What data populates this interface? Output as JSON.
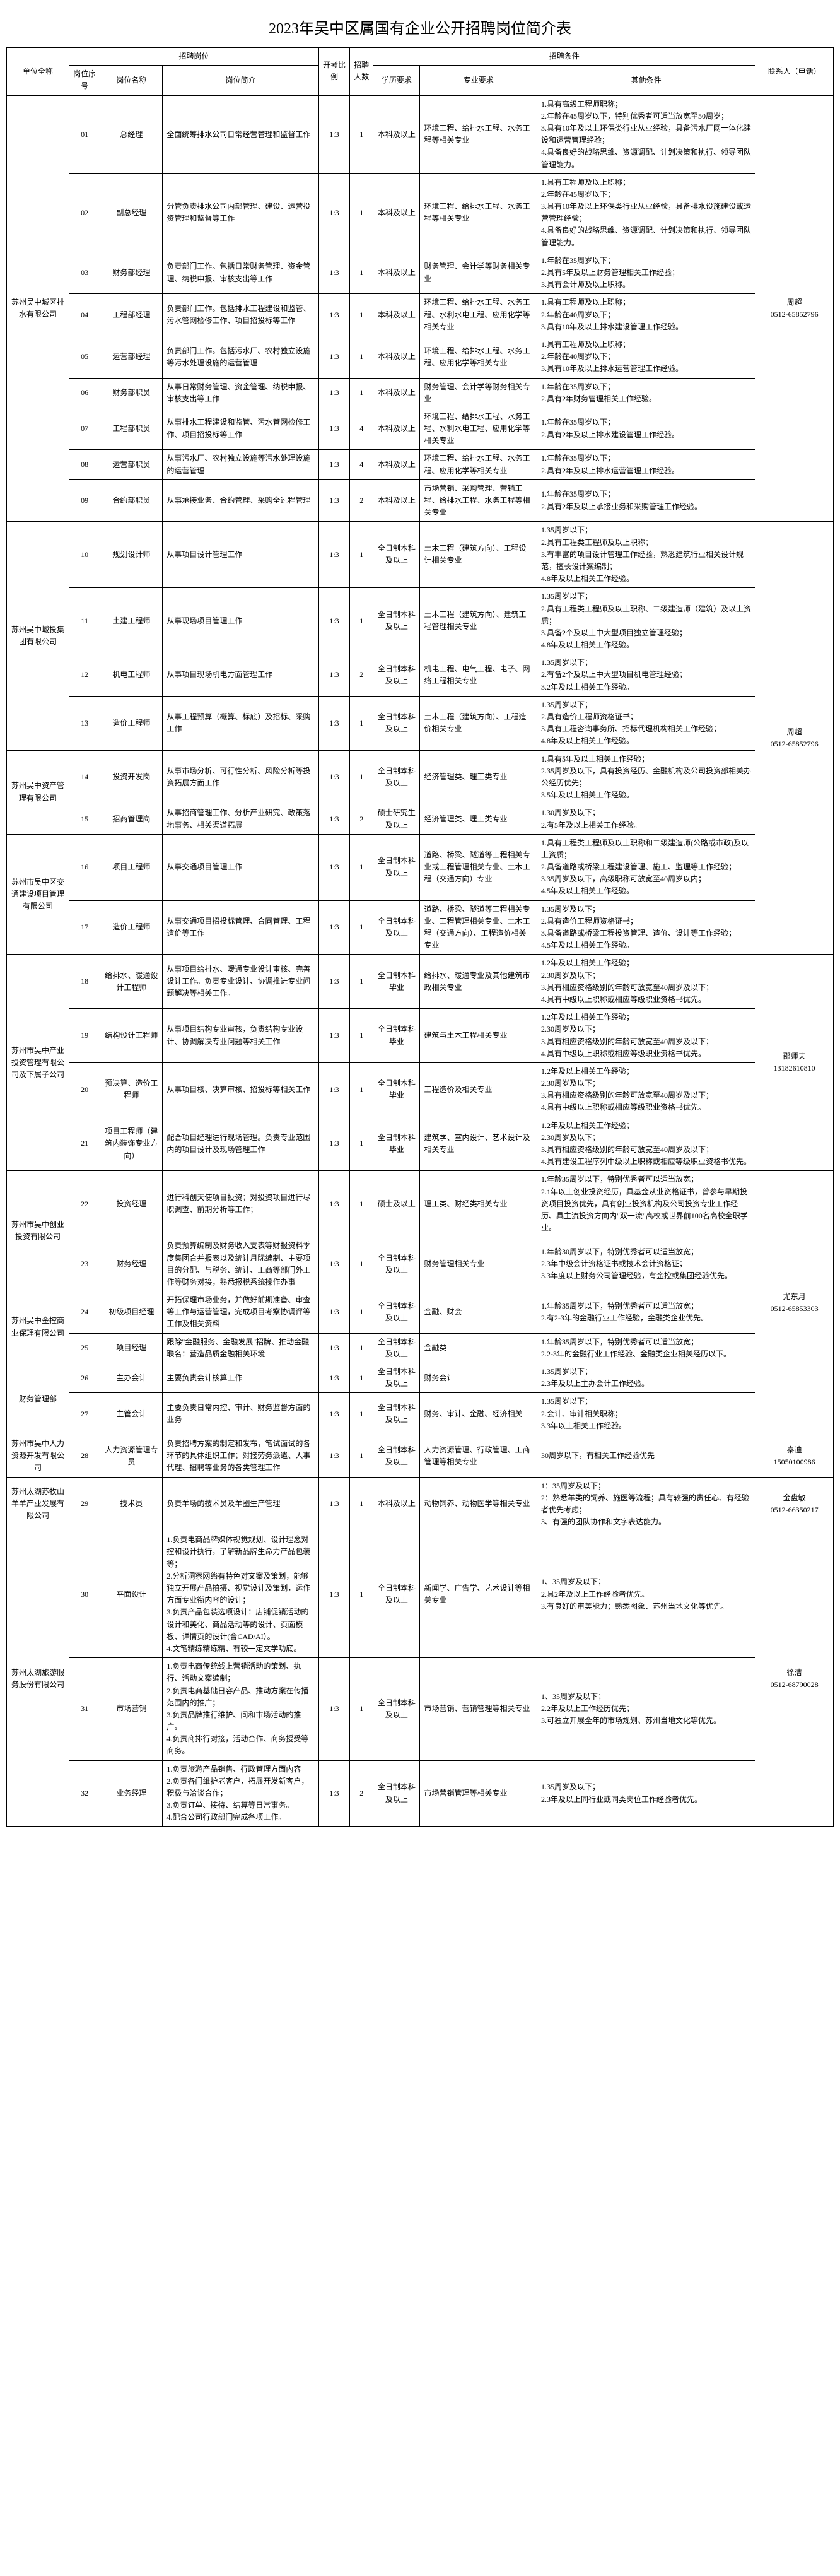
{
  "title": "2023年吴中区属国有企业公开招聘岗位简介表",
  "headers": {
    "company": "单位全称",
    "position_group": "招聘岗位",
    "seq": "岗位序号",
    "pname": "岗位名称",
    "desc": "岗位简介",
    "ratio": "开考比例",
    "count": "招聘人数",
    "cond_group": "招聘条件",
    "edu": "学历要求",
    "major": "专业要求",
    "other": "其他条件",
    "contact": "联系人（电话）"
  },
  "companies": [
    {
      "name": "苏州吴中城区排水有限公司",
      "contact": "周超\n0512-65852796",
      "positions": [
        {
          "seq": "01",
          "pname": "总经理",
          "desc": "全面统筹排水公司日常经营管理和监督工作",
          "ratio": "1:3",
          "count": "1",
          "edu": "本科及以上",
          "major": "环境工程、给排水工程、水务工程等相关专业",
          "other": "1.具有高级工程师职称；\n2.年龄在45周岁以下，特别优秀者可适当放宽至50周岁；\n3.具有10年及以上环保类行业从业经验，具备污水厂网一体化建设和运营管理经验；\n4.具备良好的战略思维、资源调配、计划决策和执行、领导团队管理能力。"
        },
        {
          "seq": "02",
          "pname": "副总经理",
          "desc": "分管负责排水公司内部管理、建设、运营投资管理和监督等工作",
          "ratio": "1:3",
          "count": "1",
          "edu": "本科及以上",
          "major": "环境工程、给排水工程、水务工程等相关专业",
          "other": "1.具有工程师及以上职称；\n2.年龄在45周岁以下；\n3.具有10年及以上环保类行业从业经验，具备排水设施建设或运营管理经验；\n4.具备良好的战略思维、资源调配、计划决策和执行、领导团队管理能力。"
        },
        {
          "seq": "03",
          "pname": "财务部经理",
          "desc": "负责部门工作。包括日常财务管理、资金管理、纳税申报、审核支出等工作",
          "ratio": "1:3",
          "count": "1",
          "edu": "本科及以上",
          "major": "财务管理、会计学等财务相关专业",
          "other": "1.年龄在35周岁以下；\n2.具有5年及以上财务管理相关工作经验；\n3.具有会计师及以上职称。"
        },
        {
          "seq": "04",
          "pname": "工程部经理",
          "desc": "负责部门工作。包括排水工程建设和监管、污水管网检修工作、项目招投标等工作",
          "ratio": "1:3",
          "count": "1",
          "edu": "本科及以上",
          "major": "环境工程、给排水工程、水务工程、水利水电工程、应用化学等相关专业",
          "other": "1.具有工程师及以上职称；\n2.年龄在40周岁以下；\n3.具有10年及以上排水建设管理工作经验。"
        },
        {
          "seq": "05",
          "pname": "运营部经理",
          "desc": "负责部门工作。包括污水厂、农村独立设施等污水处理设施的运营管理",
          "ratio": "1:3",
          "count": "1",
          "edu": "本科及以上",
          "major": "环境工程、给排水工程、水务工程、应用化学等相关专业",
          "other": "1.具有工程师及以上职称；\n2.年龄在40周岁以下；\n3.具有10年及以上排水运营管理工作经验。"
        },
        {
          "seq": "06",
          "pname": "财务部职员",
          "desc": "从事日常财务管理、资金管理、纳税申报、审核支出等工作",
          "ratio": "1:3",
          "count": "1",
          "edu": "本科及以上",
          "major": "财务管理、会计学等财务相关专业",
          "other": "1.年龄在35周岁以下；\n2.具有2年财务管理相关工作经验。"
        },
        {
          "seq": "07",
          "pname": "工程部职员",
          "desc": "从事排水工程建设和监管、污水管网检修工作、项目招投标等工作",
          "ratio": "1:3",
          "count": "4",
          "edu": "本科及以上",
          "major": "环境工程、给排水工程、水务工程、水利水电工程、应用化学等相关专业",
          "other": "1.年龄在35周岁以下；\n2.具有2年及以上排水建设管理工作经验。"
        },
        {
          "seq": "08",
          "pname": "运营部职员",
          "desc": "从事污水厂、农村独立设施等污水处理设施的运营管理",
          "ratio": "1:3",
          "count": "4",
          "edu": "本科及以上",
          "major": "环境工程、给排水工程、水务工程、应用化学等相关专业",
          "other": "1.年龄在35周岁以下；\n2.具有2年及以上排水运营管理工作经验。"
        },
        {
          "seq": "09",
          "pname": "合约部职员",
          "desc": "从事承接业务、合约管理、采购全过程管理",
          "ratio": "1:3",
          "count": "2",
          "edu": "本科及以上",
          "major": "市场营销、采购管理、营销工程、给排水工程、水务工程等相关专业",
          "other": "1.年龄在35周岁以下；\n2.具有2年及以上承接业务和采购管理工作经验。"
        }
      ]
    },
    {
      "name": "苏州吴中城投集团有限公司",
      "contact_shared": true,
      "positions": [
        {
          "seq": "10",
          "pname": "规划设计师",
          "desc": "从事项目设计管理工作",
          "ratio": "1:3",
          "count": "1",
          "edu": "全日制本科及以上",
          "major": "土木工程（建筑方向）、工程设计相关专业",
          "other": "1.35周岁以下；\n2.具有工程类工程师及以上职称；\n3.有丰富的项目设计管理工作经验，熟悉建筑行业相关设计规范，擅长设计案编制；\n4.8年及以上相关工作经验。"
        },
        {
          "seq": "11",
          "pname": "土建工程师",
          "desc": "从事现场项目管理工作",
          "ratio": "1:3",
          "count": "1",
          "edu": "全日制本科及以上",
          "major": "土木工程（建筑方向）、建筑工程管理相关专业",
          "other": "1.35周岁以下；\n2.具有工程类工程师及以上职称、二级建造师（建筑）及以上资质；\n3.具备2个及以上中大型项目独立管理经验；\n4.8年及以上相关工作经验。"
        },
        {
          "seq": "12",
          "pname": "机电工程师",
          "desc": "从事项目现场机电方面管理工作",
          "ratio": "1:3",
          "count": "2",
          "edu": "全日制本科及以上",
          "major": "机电工程、电气工程、电子、网络工程相关专业",
          "other": "1.35周岁以下；\n2.有备2个及以上中大型项目机电管理经验；\n3.2年及以上相关工作经验。"
        },
        {
          "seq": "13",
          "pname": "造价工程师",
          "desc": "从事工程预算（概算、标底）及招标、采购工作",
          "ratio": "1:3",
          "count": "1",
          "edu": "全日制本科及以上",
          "major": "土木工程（建筑方向）、工程造价相关专业",
          "other": "1.35周岁以下；\n2.具有造价工程师资格证书；\n3.具有工程咨询事务所、招标代理机构相关工作经验；\n4.8年及以上相关工作经验。"
        }
      ]
    },
    {
      "name": "苏州吴中资产管理有限公司",
      "contact": "周超\n0512-65852796",
      "positions": [
        {
          "seq": "14",
          "pname": "投资开发岗",
          "desc": "从事市场分析、可行性分析、风险分析等投资拓展方面工作",
          "ratio": "1:3",
          "count": "1",
          "edu": "全日制本科及以上",
          "major": "经济管理类、理工类专业",
          "other": "1.具有5年及以上相关工作经验；\n2.35周岁及以下，具有投资经历、金融机构及公司投资部相关办公经历优先；\n3.5年及以上相关工作经验。"
        },
        {
          "seq": "15",
          "pname": "招商管理岗",
          "desc": "从事招商管理工作、分析产业研究、政策落地事务、相关渠道拓展",
          "ratio": "1:3",
          "count": "2",
          "edu": "硕士研究生及以上",
          "major": "经济管理类、理工类专业",
          "other": "1.30周岁及以下；\n2.有5年及以上相关工作经验。"
        }
      ]
    },
    {
      "name": "苏州市吴中区交通建设项目管理有限公司",
      "contact_shared": true,
      "positions": [
        {
          "seq": "16",
          "pname": "项目工程师",
          "desc": "从事交通项目管理工作",
          "ratio": "1:3",
          "count": "1",
          "edu": "全日制本科及以上",
          "major": "道路、桥梁、隧道等工程相关专业或工程管理相关专业、土木工程（交通方向）专业",
          "other": "1.具有工程类工程师及以上职称和二级建造师(公路或市政)及以上资质；\n2.具备道路或桥梁工程建设管理、施工、监理等工作经验；\n3.35周岁及以下，高级职称可放宽至40周岁以内；\n4.5年及以上相关工作经验。"
        },
        {
          "seq": "17",
          "pname": "造价工程师",
          "desc": "从事交通项目招投标管理、合同管理、工程造价等工作",
          "ratio": "1:3",
          "count": "1",
          "edu": "全日制本科及以上",
          "major": "道路、桥梁、隧道等工程相关专业、工程管理相关专业、土木工程（交通方向）、工程造价相关专业",
          "other": "1.35周岁及以下；\n2.具有造价工程师资格证书；\n3.具备道路或桥梁工程投资管理、造价、设计等工作经验；\n4.5年及以上相关工作经验。"
        }
      ]
    },
    {
      "name": "苏州市吴中产业投资管理有限公司及下属子公司",
      "contact": "邵师夫\n13182610810",
      "positions": [
        {
          "seq": "18",
          "pname": "给排水、暖通设计工程师",
          "desc": "从事项目给排水、暖通专业设计审核、完善设计工作。负责专业设计、协调推进专业问题解决等相关工作。",
          "ratio": "1:3",
          "count": "1",
          "edu": "全日制本科毕业",
          "major": "给排水、暖通专业及其他建筑市政相关专业",
          "other": "1.2年及以上相关工作经验；\n2.30周岁及以下；\n3.具有相应资格级别的年龄可放宽至40周岁及以下；\n4.具有中级以上职称或相应等级职业资格书优先。"
        },
        {
          "seq": "19",
          "pname": "结构设计工程师",
          "desc": "从事项目结构专业审核，负责结构专业设计、协调解决专业问题等相关工作",
          "ratio": "1:3",
          "count": "1",
          "edu": "全日制本科毕业",
          "major": "建筑与土木工程相关专业",
          "other": "1.2年及以上相关工作经验；\n2.30周岁及以下；\n3.具有相应资格级别的年龄可放宽至40周岁及以下；\n4.具有中级以上职称或相应等级职业资格书优先。"
        },
        {
          "seq": "20",
          "pname": "预决算、造价工程师",
          "desc": "从事项目核、决算审核、招投标等相关工作",
          "ratio": "1:3",
          "count": "1",
          "edu": "全日制本科毕业",
          "major": "工程造价及相关专业",
          "other": "1.2年及以上相关工作经验；\n2.30周岁及以下；\n3.具有相应资格级别的年龄可放宽至40周岁及以下；\n4.具有中级以上职称或相应等级职业资格书优先。"
        },
        {
          "seq": "21",
          "pname": "项目工程师（建筑内装饰专业方向）",
          "desc": "配合项目经理进行现场管理。负责专业范围内的项目设计及现场管理工作",
          "ratio": "1:3",
          "count": "1",
          "edu": "全日制本科毕业",
          "major": "建筑学、室内设计、艺术设计及相关专业",
          "other": "1.2年及以上相关工作经验；\n2.30周岁及以下；\n3.具有相应资格级别的年龄可放宽至40周岁及以下；\n4.具有建设工程序列中级以上职称或相应等级职业资格书优先。"
        }
      ]
    },
    {
      "name": "苏州市吴中创业投资有限公司",
      "contact_shared": true,
      "positions": [
        {
          "seq": "22",
          "pname": "投资经理",
          "desc": "进行科创天使项目投资；对投资项目进行尽职调查、前期分析等工作；",
          "ratio": "1:3",
          "count": "1",
          "edu": "硕士及以上",
          "major": "理工类、财经类相关专业",
          "other": "1.年龄35周岁以下，特别优秀者可以适当放宽；\n2.1年以上创业投资经历，具基金从业资格证书，曾参与早期投资项目投资优先，具有创业投资机构及公司投资专业工作经历、具主流投资方向内\"双一流\"高校或世界前100名高校全职学业。"
        },
        {
          "seq": "23",
          "pname": "财务经理",
          "desc": "负责预算编制及财务收入支表等财报资料季度集团合并报表以及统计月际编制、主要项目的分配、与税务、统计、工商等部门外工作等财务对接，熟悉报税系统操作办事",
          "ratio": "1:3",
          "count": "1",
          "edu": "全日制本科及以上",
          "major": "财务管理相关专业",
          "other": "1.年龄30周岁以下，特别优秀者可以适当放宽；\n2.3年中级会计资格证书或技术会计资格证；\n3.3年度以上财务公司管理经验，有金控或集团经验优先。"
        }
      ]
    },
    {
      "name": "苏州吴中金控商业保理有限公司",
      "contact": "尤东月\n0512-65853303",
      "positions": [
        {
          "seq": "24",
          "pname": "初级项目经理",
          "desc": "开拓保理市场业务，并做好前期准备、审查等工作与运营管理，完成项目考察协调评等工作及相关资料",
          "ratio": "1:3",
          "count": "1",
          "edu": "全日制本科及以上",
          "major": "金融、财会",
          "other": "1.年龄35周岁以下，特别优秀者可以适当放宽；\n2.有2-3年的金融行业工作经验，金融类企业优先。"
        },
        {
          "seq": "25",
          "pname": "项目经理",
          "desc": "跟除\"金融服务、金融发展\"招牌、推动金融联名：营造品质金融相关环境",
          "ratio": "1:3",
          "count": "1",
          "edu": "全日制本科及以上",
          "major": "金融类",
          "other": "1.年龄35周岁以下，特别优秀者可以适当放宽；\n2.2-3年的金融行业工作经验、金融类企业相关经历以下。"
        }
      ]
    },
    {
      "name_shared_prefix": "财务管理部",
      "is_dept": true,
      "positions": [
        {
          "seq": "26",
          "pname": "主办会计",
          "desc": "主要负责会计核算工作",
          "ratio": "1:3",
          "count": "1",
          "edu": "全日制本科及以上",
          "major": "财务会计",
          "other": "1.35周岁以下；\n2.3年及以上主办会计工作经验。"
        },
        {
          "seq": "27",
          "pname": "主管会计",
          "desc": "主要负责日常内控、审计、财务监督方面的业务",
          "ratio": "1:3",
          "count": "1",
          "edu": "全日制本科及以上",
          "major": "财务、审计、金融、经济相关",
          "other": "1.35周岁以下；\n2.会计、审计相关职称；\n3.3年以上相关工作经验。"
        }
      ]
    },
    {
      "name": "苏州市吴中人力资源开发有限公司",
      "contact": "秦迪\n15050100986",
      "positions": [
        {
          "seq": "28",
          "pname": "人力资源管理专员",
          "desc": "负责招聘方案的制定和发布，笔试面试的各环节的具体组织工作；对接劳务派遣、人事代理、招聘等业务的各类管理工作",
          "ratio": "1:3",
          "count": "1",
          "edu": "全日制本科及以上",
          "major": "人力资源管理、行政管理、工商管理等相关专业",
          "other": "30周岁以下，有相关工作经验优先"
        }
      ]
    },
    {
      "name": "苏州太湖苏牧山羊羊产业发展有限公司",
      "contact": "金盘敏\n0512-66350217",
      "positions": [
        {
          "seq": "29",
          "pname": "技术员",
          "desc": "负责羊场的技术员及羊圈生产管理",
          "ratio": "1:3",
          "count": "1",
          "edu": "本科及以上",
          "major": "动物饲养、动物医学等相关专业",
          "other": "1：35周岁及以下；\n2：熟悉羊类的饲养、施医等流程；具有较强的责任心、有经验者优先考虑；\n3、有强的团队协作和文字表达能力。"
        }
      ]
    },
    {
      "name": "苏州太湖旅游服务股份有限公司",
      "contact": "徐洁\n0512-68790028",
      "positions": [
        {
          "seq": "30",
          "pname": "平面设计",
          "desc": "1.负责电商品牌媒体视觉规划、设计理念对控和设计执行，了解新品牌生命力产品包装等；\n2.分析洞察网络有特色对文案及策划，能够独立开展产品拍摄、视觉设计及策划，运作方面专业衔内容的设计；\n3.负责产品包装选项设计：店铺促销活动的设计和美化、商品活动等的设计、页面模板、详情页的设计(含CAD/AI）。\n4.文笔精练精练精、有较一定文学功底。",
          "ratio": "1:3",
          "count": "1",
          "edu": "全日制本科及以上",
          "major": "新闻学、广告学、艺术设计等相关专业",
          "other": "1、35周岁及以下；\n2.具2年及以上工作经验者优先。\n3.有良好的审美能力；熟悉图象、苏州当地文化等优先。"
        },
        {
          "seq": "31",
          "pname": "市场营销",
          "desc": "1.负责电商传统线上营销活动的策划、执行、活动文案编制；\n2.负责电商基础日容产品、推动方案在传播范围内的推广；\n3.负责品牌推行维护、间和市场活动的推广。\n4.负责商排行对接，活动合作、商务授受等商务。",
          "ratio": "1:3",
          "count": "1",
          "edu": "全日制本科及以上",
          "major": "市场营销、营销管理等相关专业",
          "other": "1、35周岁及以下；\n2.2年及以上工作经历优先；\n3.可独立开展全年的市场规划、苏州当地文化等优先。"
        },
        {
          "seq": "32",
          "pname": "业务经理",
          "desc": "1.负责旅游产品销售、行政管理方面内容\n2.负责各门维护老客户，拓展开发新客户，积极与洽谈合作；\n3.负责订单、接待、结算等日常事务。\n4.配合公司行政部门完成各项工作。",
          "ratio": "1:3",
          "count": "2",
          "edu": "全日制本科及以上",
          "major": "市场营销管理等相关专业",
          "other": "1.35周岁及以下；\n2.3年及以上同行业或同类岗位工作经验者优先。"
        }
      ]
    }
  ]
}
